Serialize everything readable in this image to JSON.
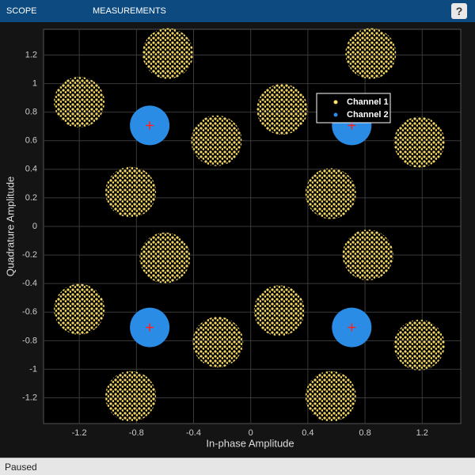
{
  "toolbar": {
    "tabs": [
      "SCOPE",
      "MEASUREMENTS"
    ],
    "help": "?"
  },
  "status": "Paused",
  "chart_data": {
    "type": "scatter",
    "xlabel": "In-phase Amplitude",
    "ylabel": "Quadrature Amplitude",
    "xlim": [
      -1.45,
      1.47
    ],
    "ylim": [
      -1.38,
      1.38
    ],
    "xticks": [
      -1.2,
      -0.8,
      -0.4,
      0,
      0.4,
      0.8,
      1.2
    ],
    "yticks": [
      -1.2,
      -1,
      -0.8,
      -0.6,
      -0.4,
      -0.2,
      0,
      0.2,
      0.4,
      0.6,
      0.8,
      1,
      1.2
    ],
    "grid": true,
    "legend": "upper right",
    "series": [
      {
        "name": "Channel 1",
        "color": "#ffe26b",
        "x": [
          -0.58,
          0.84,
          -1.2,
          0.22,
          1.18,
          -0.24,
          -0.84,
          0.56,
          -0.6,
          0.82,
          -1.2,
          0.2,
          -0.23,
          1.18,
          -0.84,
          0.56
        ],
        "y": [
          1.21,
          1.21,
          0.87,
          0.82,
          0.59,
          0.6,
          0.24,
          0.23,
          -0.22,
          -0.2,
          -0.58,
          -0.59,
          -0.81,
          -0.83,
          -1.19,
          -1.19
        ]
      },
      {
        "name": "Channel 2",
        "color": "#2b8ce6",
        "x": [
          -0.707,
          0.707,
          -0.707,
          0.707
        ],
        "y": [
          0.707,
          0.707,
          -0.707,
          -0.707
        ]
      }
    ],
    "reference": {
      "color": "#ff2020",
      "x": [
        -0.707,
        0.707,
        -0.707,
        0.707
      ],
      "y": [
        0.707,
        0.707,
        -0.707,
        -0.707
      ]
    }
  }
}
